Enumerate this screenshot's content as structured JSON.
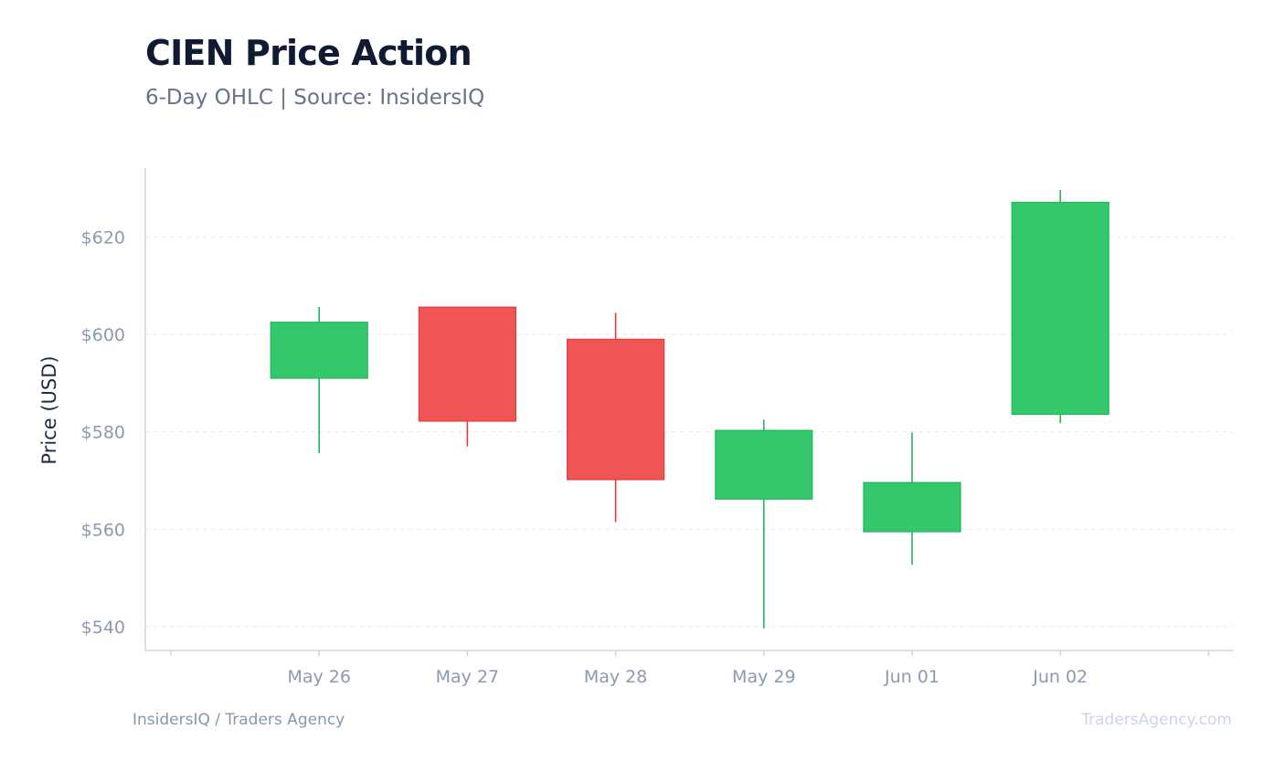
{
  "title": "CIEN Price Action",
  "subtitle": "6-Day OHLC | Source: InsidersIQ",
  "footer": {
    "left": "InsidersIQ / Traders Agency",
    "right": "TradersAgency.com"
  },
  "colors": {
    "up": "#34c76b",
    "up_stroke": "#22b85a",
    "down": "#ef5555",
    "down_stroke": "#e23c3c",
    "grid": "#e8edf3",
    "axis": "#cbd5e1"
  },
  "chart_data": {
    "type": "candlestick",
    "title": "CIEN Price Action",
    "subtitle": "6-Day OHLC | Source: InsidersIQ",
    "ylabel": "Price (USD)",
    "xlabel": "",
    "ylim": [
      535,
      635
    ],
    "yticks": [
      540,
      560,
      580,
      600,
      620
    ],
    "ytick_labels": [
      "$540",
      "$560",
      "$580",
      "$600",
      "$620"
    ],
    "grid": true,
    "candles": [
      {
        "date": "May 26",
        "open": 591.0,
        "high": 605.6,
        "low": 575.6,
        "close": 602.5
      },
      {
        "date": "May 27",
        "open": 605.6,
        "high": 605.6,
        "low": 577.0,
        "close": 582.2
      },
      {
        "date": "May 28",
        "open": 599.0,
        "high": 604.4,
        "low": 561.5,
        "close": 570.2
      },
      {
        "date": "May 29",
        "open": 566.2,
        "high": 582.5,
        "low": 539.7,
        "close": 580.3
      },
      {
        "date": "Jun 01",
        "open": 559.5,
        "high": 579.9,
        "low": 552.7,
        "close": 569.6
      },
      {
        "date": "Jun 02",
        "open": 583.6,
        "high": 629.6,
        "low": 581.8,
        "close": 627.1
      }
    ]
  }
}
